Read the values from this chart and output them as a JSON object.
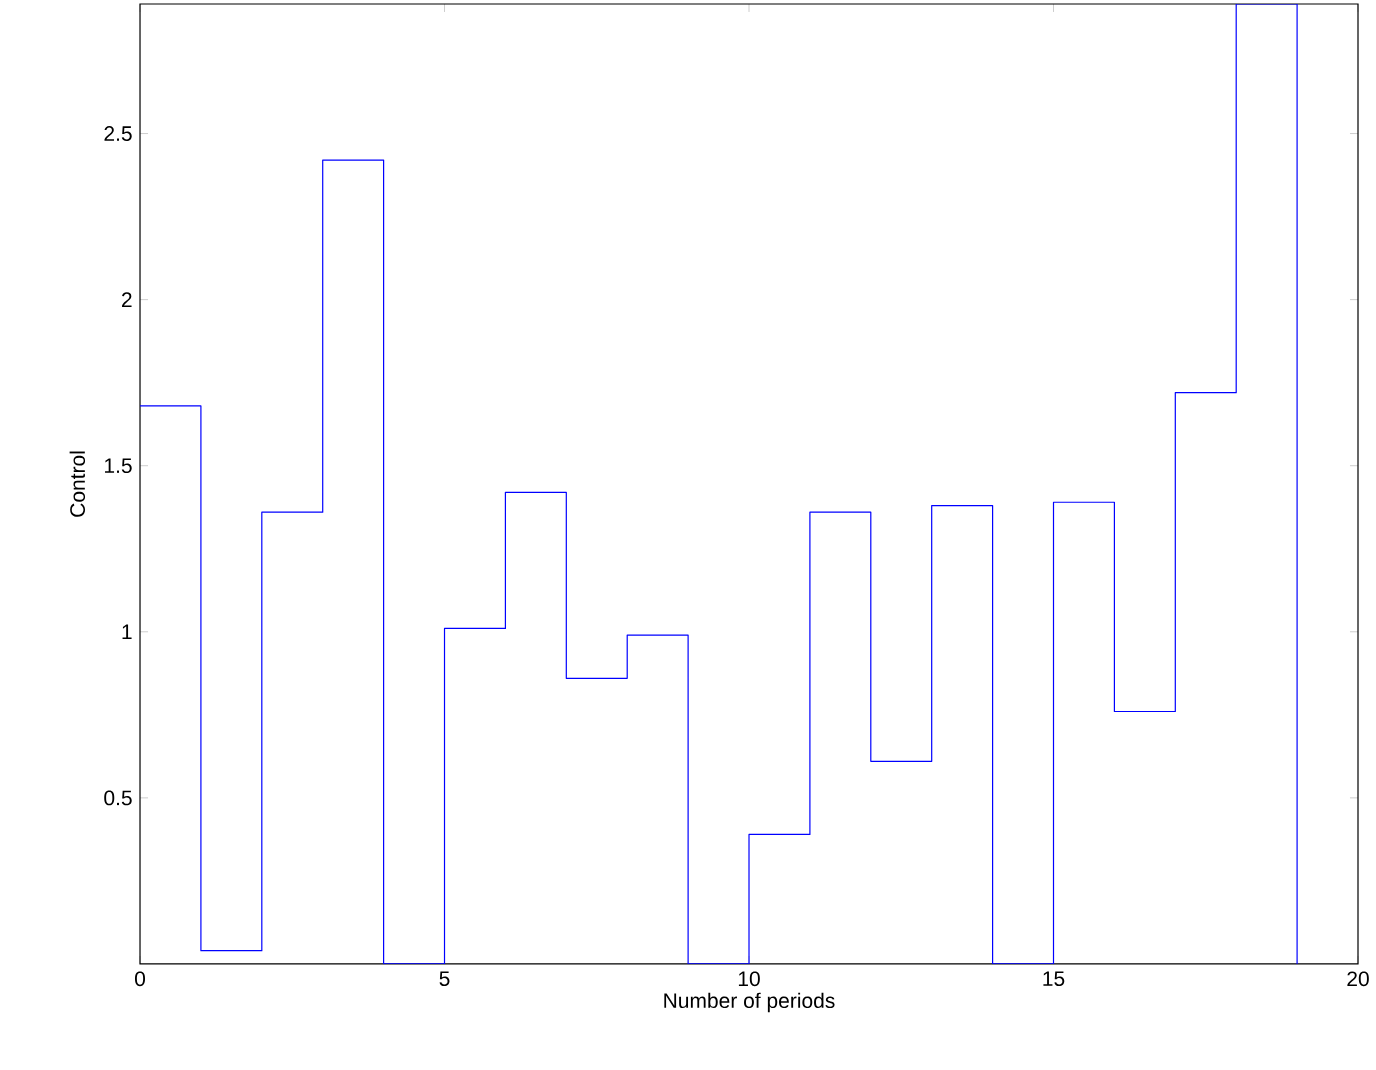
{
  "chart_data": {
    "type": "step",
    "xlabel": "Number of periods",
    "ylabel": "Control",
    "x": [
      0,
      1,
      2,
      3,
      4,
      5,
      6,
      7,
      8,
      9,
      10,
      11,
      12,
      13,
      14,
      15,
      16,
      17,
      18,
      19
    ],
    "series": [
      {
        "color": "#0000ff",
        "values": [
          1.68,
          0.04,
          1.36,
          2.42,
          0,
          1.01,
          1.42,
          0.86,
          0.99,
          0,
          0.39,
          1.36,
          0.61,
          1.38,
          0,
          1.39,
          0.76,
          1.72,
          2.89,
          0
        ]
      }
    ],
    "xlim": [
      0,
      20
    ],
    "ylim": [
      0,
      2.89
    ],
    "xticks": [
      0,
      5,
      10,
      15,
      20
    ],
    "yticks": [
      0.5,
      1,
      1.5,
      2,
      2.5
    ]
  }
}
